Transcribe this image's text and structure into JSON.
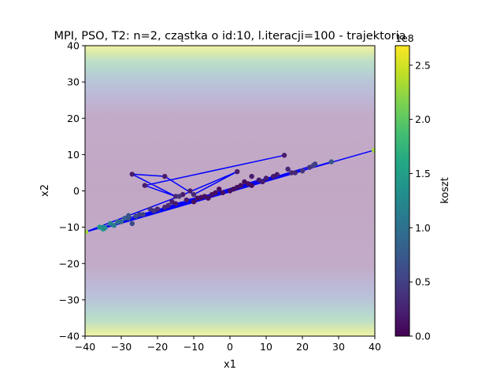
{
  "chart_data": {
    "type": "scatter",
    "title": "MPI, PSO, T2: n=2, cząstka o id:10, l.iteracji=100 - trajektoria",
    "xlabel": "x1",
    "ylabel": "x2",
    "xlim": [
      -40,
      40
    ],
    "ylim": [
      -40,
      40
    ],
    "x_ticks": [
      -40,
      -30,
      -20,
      -10,
      0,
      10,
      20,
      30,
      40
    ],
    "y_ticks": [
      -40,
      -30,
      -20,
      -10,
      0,
      10,
      20,
      30,
      40
    ],
    "x_tick_labels": [
      "−40",
      "−30",
      "−20",
      "−10",
      "0",
      "10",
      "20",
      "30",
      "40"
    ],
    "y_tick_labels": [
      "−40",
      "−30",
      "−20",
      "−10",
      "0",
      "10",
      "20",
      "30",
      "40"
    ],
    "grid": false,
    "colormap": "viridis",
    "line_color": "#0000ff",
    "colorbar": {
      "label": "koszt",
      "min": 0.0,
      "max": 2.68,
      "multiplier": "1e8",
      "ticks": [
        0.0,
        0.5,
        1.0,
        1.5,
        2.0,
        2.5
      ],
      "tick_labels": [
        "0.0",
        "0.5",
        "1.0",
        "1.5",
        "2.0",
        "2.5"
      ]
    },
    "trajectory": [
      {
        "x": 15.0,
        "y": 9.8,
        "cost": 0.2
      },
      {
        "x": -23.5,
        "y": 1.5,
        "cost": 0.2
      },
      {
        "x": -15.0,
        "y": -1.5,
        "cost": 0.3
      },
      {
        "x": -27.0,
        "y": 4.6,
        "cost": 0.2
      },
      {
        "x": -18.0,
        "y": 4.0,
        "cost": 0.2
      },
      {
        "x": -10.0,
        "y": -1.0,
        "cost": 0.3
      },
      {
        "x": 2.0,
        "y": 5.3,
        "cost": 0.2
      },
      {
        "x": -14.0,
        "y": -1.5,
        "cost": 0.4
      },
      {
        "x": -39.8,
        "y": -11.3,
        "cost": 2.3
      },
      {
        "x": 39.8,
        "y": 11.2,
        "cost": 2.3
      },
      {
        "x": -35.0,
        "y": -10.0,
        "cost": 1.3
      },
      {
        "x": 28.0,
        "y": 8.0,
        "cost": 0.7
      },
      {
        "x": -34.5,
        "y": -10.2,
        "cost": 1.3
      },
      {
        "x": 23.0,
        "y": 7.0,
        "cost": 0.5
      },
      {
        "x": -32.0,
        "y": -9.5,
        "cost": 1.1
      },
      {
        "x": 20.0,
        "y": 5.5,
        "cost": 0.4
      },
      {
        "x": -30.0,
        "y": -8.5,
        "cost": 0.9
      },
      {
        "x": 17.0,
        "y": 5.0,
        "cost": 0.3
      },
      {
        "x": -28.0,
        "y": -7.5,
        "cost": 0.7
      },
      {
        "x": 12.0,
        "y": 4.0,
        "cost": 0.2
      },
      {
        "x": -26.0,
        "y": -7.0,
        "cost": 0.6
      },
      {
        "x": 8.0,
        "y": 3.0,
        "cost": 0.2
      },
      {
        "x": -24.0,
        "y": -6.5,
        "cost": 0.5
      },
      {
        "x": 5.0,
        "y": 2.0,
        "cost": 0.1
      },
      {
        "x": -21.0,
        "y": -5.5,
        "cost": 0.4
      },
      {
        "x": 2.0,
        "y": 1.0,
        "cost": 0.1
      },
      {
        "x": -18.0,
        "y": -4.5,
        "cost": 0.3
      },
      {
        "x": 0.0,
        "y": 0.0,
        "cost": 0.1
      },
      {
        "x": -15.0,
        "y": -3.5,
        "cost": 0.2
      },
      {
        "x": -2.0,
        "y": -0.5,
        "cost": 0.1
      },
      {
        "x": -12.0,
        "y": -2.5,
        "cost": 0.2
      },
      {
        "x": -5.0,
        "y": -1.0,
        "cost": 0.1
      },
      {
        "x": -9.0,
        "y": -2.0,
        "cost": 0.1
      },
      {
        "x": -7.0,
        "y": -1.5,
        "cost": 0.1
      },
      {
        "x": -8.0,
        "y": -1.8,
        "cost": 0.1
      }
    ],
    "points": [
      {
        "x": -36.0,
        "y": -10.0,
        "cost": 1.4
      },
      {
        "x": -35.0,
        "y": -10.5,
        "cost": 1.4
      },
      {
        "x": -33.0,
        "y": -9.0,
        "cost": 1.2
      },
      {
        "x": -31.0,
        "y": -8.5,
        "cost": 1.0
      },
      {
        "x": -29.0,
        "y": -7.5,
        "cost": 0.8
      },
      {
        "x": -28.0,
        "y": -6.8,
        "cost": 0.7
      },
      {
        "x": -27.0,
        "y": -9.0,
        "cost": 0.6
      },
      {
        "x": -25.0,
        "y": -6.5,
        "cost": 0.5
      },
      {
        "x": -22.0,
        "y": -5.0,
        "cost": 0.4
      },
      {
        "x": -20.0,
        "y": -5.0,
        "cost": 0.3
      },
      {
        "x": -17.0,
        "y": -4.0,
        "cost": 0.3
      },
      {
        "x": -16.0,
        "y": -3.0,
        "cost": 0.2
      },
      {
        "x": -13.0,
        "y": -1.0,
        "cost": 0.2
      },
      {
        "x": -11.0,
        "y": 0.0,
        "cost": 0.2
      },
      {
        "x": -10.0,
        "y": -3.0,
        "cost": 0.1
      },
      {
        "x": -6.0,
        "y": -2.0,
        "cost": 0.1
      },
      {
        "x": -4.0,
        "y": -0.5,
        "cost": 0.1
      },
      {
        "x": -3.0,
        "y": 0.5,
        "cost": 0.1
      },
      {
        "x": 1.0,
        "y": 0.5,
        "cost": 0.1
      },
      {
        "x": 3.0,
        "y": 1.5,
        "cost": 0.1
      },
      {
        "x": 4.0,
        "y": 2.5,
        "cost": 0.1
      },
      {
        "x": 6.0,
        "y": 1.5,
        "cost": 0.1
      },
      {
        "x": 6.0,
        "y": 4.0,
        "cost": 0.2
      },
      {
        "x": 9.0,
        "y": 2.5,
        "cost": 0.2
      },
      {
        "x": 10.0,
        "y": 3.5,
        "cost": 0.2
      },
      {
        "x": 13.0,
        "y": 4.5,
        "cost": 0.2
      },
      {
        "x": 16.0,
        "y": 6.0,
        "cost": 0.3
      },
      {
        "x": 18.0,
        "y": 5.0,
        "cost": 0.3
      },
      {
        "x": 22.0,
        "y": 6.5,
        "cost": 0.4
      },
      {
        "x": 23.5,
        "y": 7.4,
        "cost": 0.5
      }
    ]
  }
}
